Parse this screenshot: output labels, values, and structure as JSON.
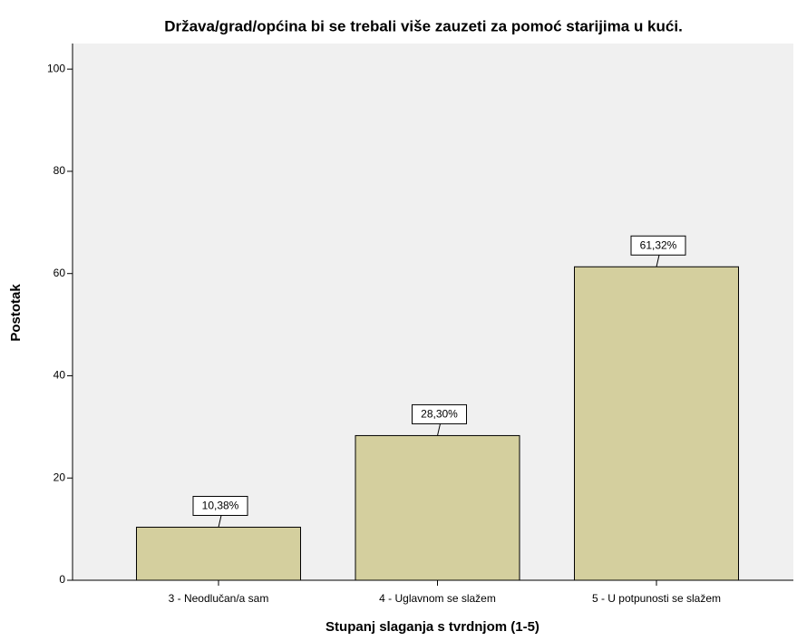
{
  "chart_data": {
    "type": "bar",
    "title": "Država/grad/općina bi se trebali više zauzeti za pomoć starijima u kući.",
    "x_label": "Stupanj slaganja s tvrdnjom (1-5)",
    "y_label": "Postotak",
    "categories": [
      "3 - Neodlučan/a sam",
      "4 - Uglavnom se slažem",
      "5 - U potpunosti se slažem"
    ],
    "values": [
      10.38,
      28.3,
      61.32
    ],
    "value_labels": [
      "10,38%",
      "28,30%",
      "61,32%"
    ],
    "color": "#d4cf9e",
    "ylim": [
      0,
      105
    ],
    "yticks": [
      0,
      20,
      40,
      60,
      80,
      100
    ],
    "grid": false
  }
}
